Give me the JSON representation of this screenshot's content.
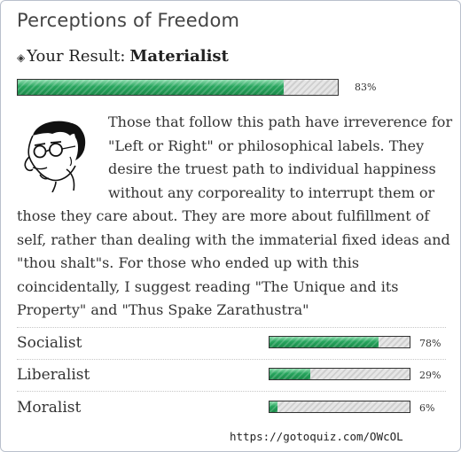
{
  "quiz": {
    "title": "Perceptions of Freedom",
    "result_prefix": "Your Result:",
    "result_name": "Materialist",
    "result_percent": 83,
    "result_percent_label": "83%",
    "description": "Those that follow this path have irreverence for \"Left or Right\" or philosophical labels. They desire the truest path to individual happiness without any corporeality to interrupt them or those they care about. They are more about fulfillment of self, rather than dealing with the immaterial fixed ideas and \"thou shalt\"s. For those who ended up with this coincidentally, I suggest reading \"The Unique and its Property\" and \"Thus Spake Zarathustra\""
  },
  "other_results": [
    {
      "label": "Socialist",
      "percent": 78,
      "percent_label": "78%"
    },
    {
      "label": "Liberalist",
      "percent": 29,
      "percent_label": "29%"
    },
    {
      "label": "Moralist",
      "percent": 6,
      "percent_label": "6%"
    }
  ],
  "footer": {
    "url": "https://gotoquiz.com/OWcOL"
  },
  "colors": {
    "bar_fill": "#26a55d",
    "bar_empty": "#dcdcdc",
    "border": "#b9c0cc"
  },
  "icons": {
    "bullet": "diamond-icon",
    "portrait": "portrait-sketch-icon"
  }
}
